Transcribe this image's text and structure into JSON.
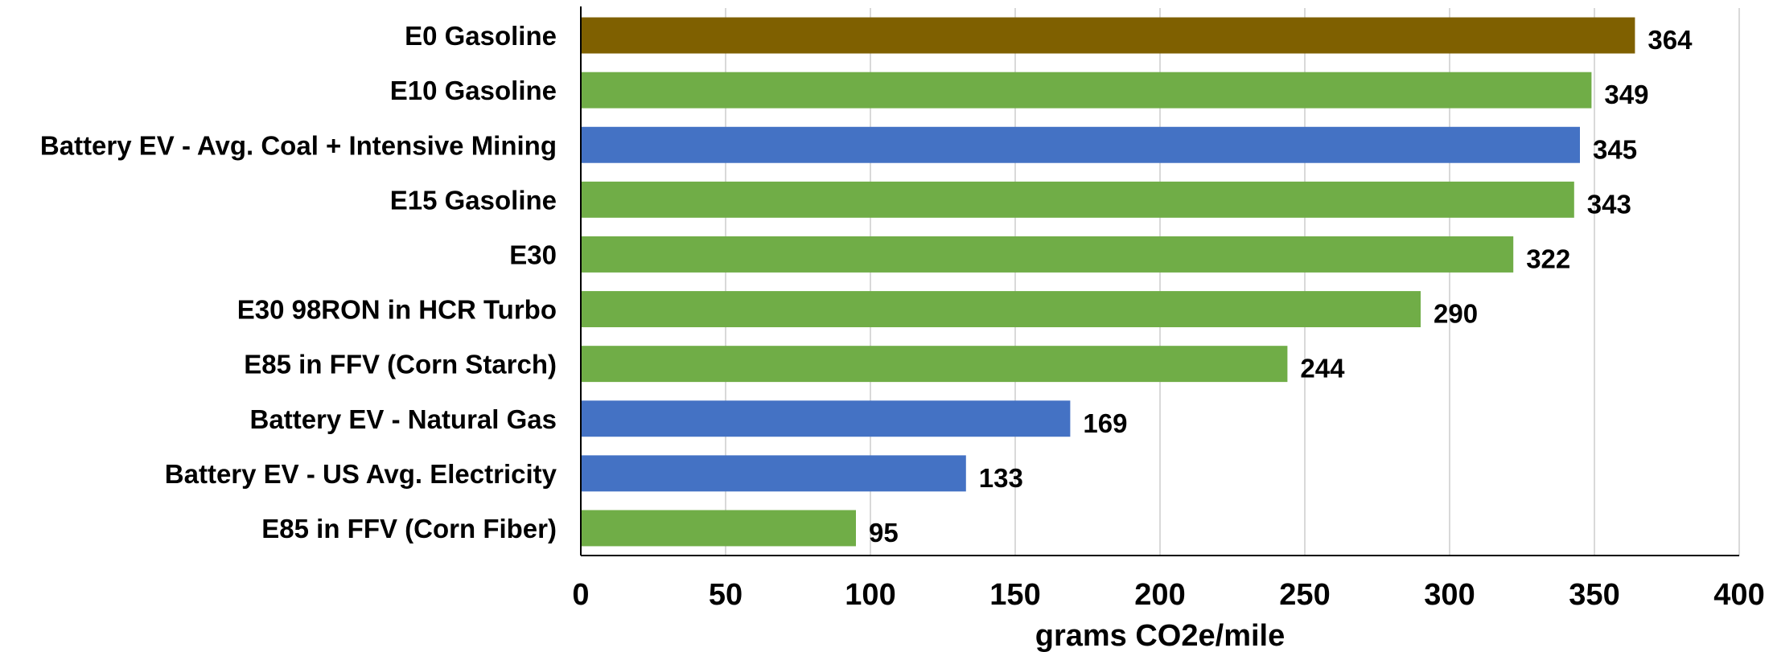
{
  "chart_data": {
    "type": "bar",
    "orientation": "horizontal",
    "categories": [
      "E0 Gasoline",
      "E10 Gasoline",
      "Battery EV - Avg. Coal + Intensive Mining",
      "E15 Gasoline",
      "E30",
      "E30 98RON in HCR Turbo",
      "E85 in FFV (Corn Starch)",
      "Battery EV - Natural Gas",
      "Battery EV - US Avg. Electricity",
      "E85 in FFV (Corn Fiber)"
    ],
    "values": [
      364,
      349,
      345,
      343,
      322,
      290,
      244,
      169,
      133,
      95
    ],
    "bar_colors": [
      "#7f6000",
      "#70ad47",
      "#4472c4",
      "#70ad47",
      "#70ad47",
      "#70ad47",
      "#70ad47",
      "#4472c4",
      "#4472c4",
      "#70ad47"
    ],
    "xlabel": "grams CO2e/mile",
    "ylabel": "",
    "title": "",
    "xlim": [
      0,
      400
    ],
    "xticks": [
      0,
      50,
      100,
      150,
      200,
      250,
      300,
      350,
      400
    ],
    "grid": "vertical",
    "data_labels": true
  }
}
